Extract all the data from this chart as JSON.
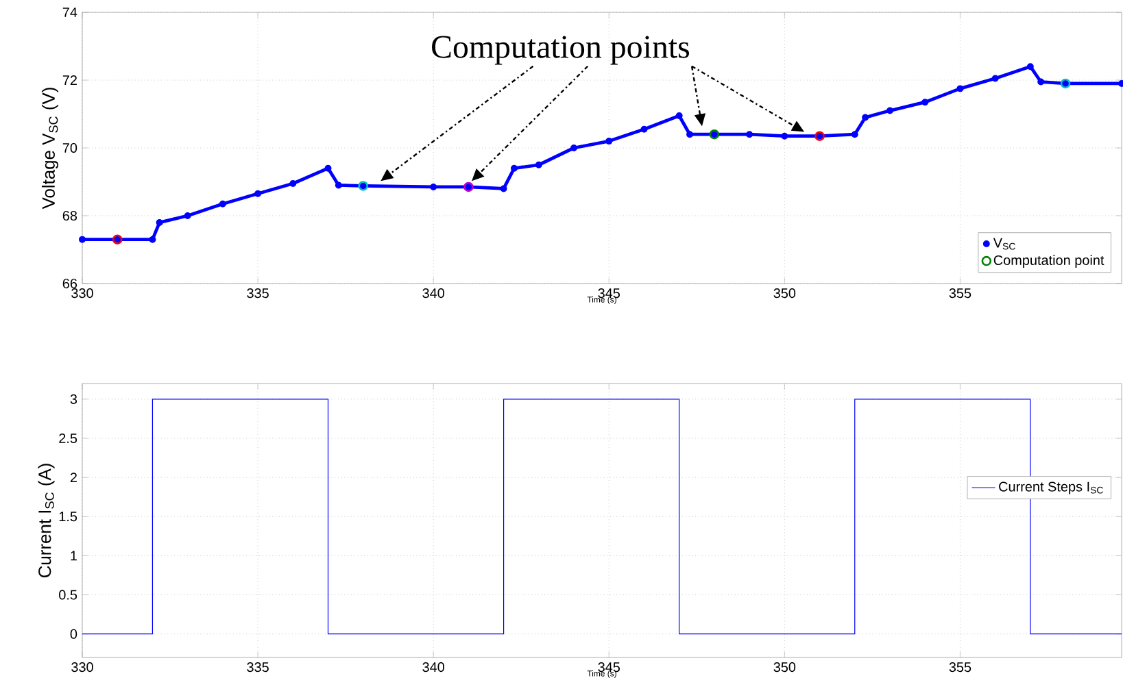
{
  "chart_data": [
    {
      "type": "line",
      "xlabel": "Time (s)",
      "ylabel": "Voltage V$_{SC}$ (V)",
      "xlim": [
        330,
        359.6
      ],
      "ylim": [
        66,
        74
      ],
      "xticks": [
        330,
        335,
        340,
        345,
        350,
        355
      ],
      "yticks": [
        66,
        68,
        70,
        72,
        74
      ],
      "grid": true,
      "legend": "bottom right",
      "annotations": [
        "Computation points"
      ],
      "series": [
        {
          "name": "V$_{SC}$",
          "color": "#0000ff",
          "marker": "circle",
          "x": [
            330,
            331,
            332,
            332.2,
            333,
            334,
            335,
            336,
            337,
            337.3,
            338,
            340,
            341,
            342,
            342.3,
            343,
            344,
            345,
            346,
            347,
            347.3,
            348,
            349,
            350,
            351,
            352,
            352.3,
            353,
            354,
            355,
            356,
            357,
            357.3,
            358,
            359.6
          ],
          "values": [
            67.3,
            67.3,
            67.3,
            67.8,
            68.0,
            68.35,
            68.65,
            68.95,
            69.4,
            68.9,
            68.88,
            68.85,
            68.85,
            68.8,
            69.4,
            69.5,
            70.0,
            70.2,
            70.55,
            70.95,
            70.4,
            70.4,
            70.4,
            70.35,
            70.35,
            70.4,
            70.9,
            71.1,
            71.35,
            71.75,
            72.05,
            72.4,
            71.95,
            71.9,
            71.9
          ]
        },
        {
          "name": "Computation point",
          "type": "scatter",
          "color": "#008000",
          "marker": "circle",
          "colors": [
            "#ff0000",
            "#00c0c0",
            "#c000c0",
            "#008000",
            "#ff0000",
            "#00c0c0"
          ],
          "x": [
            331,
            338,
            341,
            348,
            351,
            358
          ],
          "values": [
            67.3,
            68.88,
            68.85,
            70.4,
            70.35,
            71.9
          ]
        }
      ]
    },
    {
      "type": "step",
      "xlabel": "Time (s)",
      "ylabel": "Current I$_{SC}$ (A)",
      "xlim": [
        330,
        359.6
      ],
      "ylim": [
        -0.3,
        3.2
      ],
      "xticks": [
        330,
        335,
        340,
        345,
        350,
        355
      ],
      "yticks": [
        0,
        0.5,
        1,
        1.5,
        2,
        2.5,
        3
      ],
      "grid": true,
      "legend": "right",
      "series": [
        {
          "name": "Current Steps I$_{SC}$",
          "color": "#0000ff",
          "x": [
            330,
            332,
            337,
            342,
            347,
            352,
            357,
            359.6
          ],
          "values": [
            0,
            3,
            0,
            3,
            0,
            3,
            0,
            0
          ]
        }
      ]
    }
  ]
}
